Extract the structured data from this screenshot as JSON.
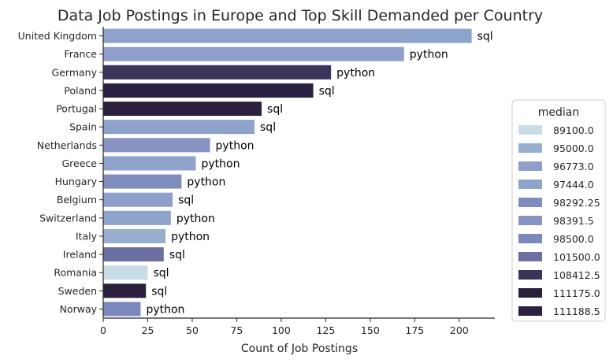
{
  "chart_data": {
    "type": "bar",
    "orientation": "horizontal",
    "title": "Data Job Postings in Europe and Top Skill Demanded per Country",
    "xlabel": "Count of Job Postings",
    "ylabel": "",
    "xlim": [
      0,
      220
    ],
    "x_ticks": [
      0,
      25,
      50,
      75,
      100,
      125,
      150,
      175,
      200
    ],
    "grid": false,
    "legend_position": "right",
    "legend_title": "median",
    "legend": [
      {
        "label": "89100.0",
        "color": "#c9dde9"
      },
      {
        "label": "95000.0",
        "color": "#98aecf"
      },
      {
        "label": "96773.0",
        "color": "#8e9fcb"
      },
      {
        "label": "97444.0",
        "color": "#8ea3c9"
      },
      {
        "label": "98292.25",
        "color": "#7f8dbe"
      },
      {
        "label": "98391.5",
        "color": "#8794c3"
      },
      {
        "label": "98500.0",
        "color": "#7b87bf"
      },
      {
        "label": "101500.0",
        "color": "#6a70a0"
      },
      {
        "label": "108412.5",
        "color": "#3a3458"
      },
      {
        "label": "111175.0",
        "color": "#2b1f3e"
      },
      {
        "label": "111188.5",
        "color": "#2b1f42"
      }
    ],
    "bars": [
      {
        "category": "United Kingdom",
        "value": 207,
        "label": "sql",
        "color": "#8ea3c9"
      },
      {
        "category": "France",
        "value": 169,
        "label": "python",
        "color": "#8e9fcb"
      },
      {
        "category": "Germany",
        "value": 128,
        "label": "python",
        "color": "#3a3458"
      },
      {
        "category": "Poland",
        "value": 118,
        "label": "sql",
        "color": "#2b1f42"
      },
      {
        "category": "Portugal",
        "value": 89,
        "label": "sql",
        "color": "#2b1f3e"
      },
      {
        "category": "Spain",
        "value": 85,
        "label": "sql",
        "color": "#8ea3c9"
      },
      {
        "category": "Netherlands",
        "value": 60,
        "label": "python",
        "color": "#8794c3"
      },
      {
        "category": "Greece",
        "value": 52,
        "label": "python",
        "color": "#8ea3c9"
      },
      {
        "category": "Hungary",
        "value": 44,
        "label": "python",
        "color": "#7f8dbe"
      },
      {
        "category": "Belgium",
        "value": 39,
        "label": "sql",
        "color": "#8e9fcb"
      },
      {
        "category": "Switzerland",
        "value": 38,
        "label": "python",
        "color": "#8ea3c9"
      },
      {
        "category": "Italy",
        "value": 35,
        "label": "python",
        "color": "#98aecf"
      },
      {
        "category": "Ireland",
        "value": 34,
        "label": "sql",
        "color": "#6a70a0"
      },
      {
        "category": "Romania",
        "value": 25,
        "label": "sql",
        "color": "#c9dde9"
      },
      {
        "category": "Sweden",
        "value": 24,
        "label": "sql",
        "color": "#2b1f3e"
      },
      {
        "category": "Norway",
        "value": 21,
        "label": "python",
        "color": "#7b87bf"
      }
    ]
  }
}
